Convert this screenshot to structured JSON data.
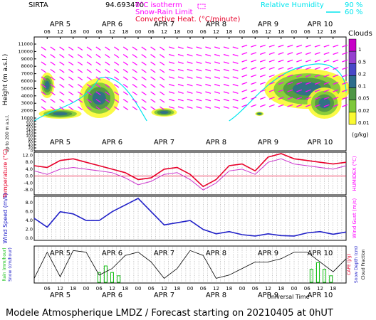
{
  "header": {
    "station": "SIRTA",
    "number": "94.693470",
    "isotherm_label": "0°C isotherm",
    "snowrain_label": "Snow-Rain Limit",
    "conv_label": "Convective Heat. (°C/minute)",
    "rh_label": "Relative Humidity",
    "rh_90": "90 %",
    "rh_60": "60 %"
  },
  "footer": "Modele Atmospherique LMDZ / Forecast starting on 20210405 at 0hUT",
  "colors": {
    "magenta": "#ff00ff",
    "cyan": "#00e5ee",
    "red": "#e8002a",
    "blue": "#2020c8",
    "green": "#10c010"
  },
  "chart_data": [
    {
      "type": "heatmap",
      "title": "Clouds",
      "ylabel": "Height (m a.s.l.)",
      "ylabel2": "Up to 200 m a.s.l.",
      "colorbar_unit": "(g/kg)",
      "colorbar_ticks": [
        "1",
        "0.5",
        "0.2",
        "0.1",
        "0.05",
        "0.02",
        "0.01"
      ],
      "colorbar_colors": [
        "#c800c8",
        "#9640d0",
        "#4848c8",
        "#2d6e8c",
        "#4e9646",
        "#7ec83a",
        "#fafa32"
      ],
      "yticks": [
        "11000",
        "10000",
        "9000",
        "8000",
        "7000",
        "6000",
        "5000",
        "4000",
        "3000",
        "2000",
        "1000",
        "200",
        "180",
        "160",
        "140",
        "120",
        "100",
        "80",
        "60",
        "40",
        "20",
        "0"
      ],
      "day_labels": [
        "APR 5",
        "APR 6",
        "APR 7",
        "APR 8",
        "APR 9",
        "APR 10"
      ],
      "hour_labels": [
        "06",
        "12",
        "18",
        "00",
        "06",
        "12",
        "18",
        "00",
        "06",
        "12",
        "18",
        "00",
        "06",
        "12",
        "18",
        "00",
        "06",
        "12",
        "18",
        "00",
        "06",
        "12",
        "18"
      ]
    },
    {
      "type": "line",
      "ylabel": "Temperature (°C)",
      "ylabel_right": "HUMIDEX (°C)",
      "yticks": [
        "12.0",
        "8.0",
        "4.0",
        "0.0",
        "-4.0",
        "-8.0"
      ],
      "ylim": [
        -10,
        13
      ],
      "x_hours": [
        0,
        6,
        12,
        18,
        24,
        30,
        36,
        42,
        48,
        54,
        60,
        66,
        72,
        78,
        84,
        90,
        96,
        102,
        108,
        114,
        120,
        126,
        132,
        138,
        144
      ],
      "series": [
        {
          "values": [
            6,
            5,
            9,
            10,
            8,
            6,
            4,
            2,
            -2,
            -1,
            4,
            5,
            1,
            -6,
            -2,
            6,
            7,
            3,
            11,
            13,
            10,
            9,
            8,
            7,
            8
          ]
        },
        {
          "values": [
            3,
            1,
            4,
            5,
            4,
            3,
            2,
            -1,
            -5,
            -3,
            1,
            2,
            -2,
            -8,
            -4,
            3,
            4,
            1,
            8,
            10,
            7,
            6,
            5,
            4,
            6
          ]
        }
      ]
    },
    {
      "type": "line",
      "ylabel": "Wind Speed (m/s)",
      "ylabel_right": "Wind Gust (m/s)",
      "yticks": [
        "8.0",
        "6.0",
        "4.0",
        "2.0",
        "0.0"
      ],
      "ylim": [
        0,
        9
      ],
      "x_hours": [
        0,
        6,
        12,
        18,
        24,
        30,
        36,
        42,
        48,
        54,
        60,
        66,
        72,
        78,
        84,
        90,
        96,
        102,
        108,
        114,
        120,
        126,
        132,
        138,
        144
      ],
      "series": [
        {
          "values": [
            4.5,
            2.5,
            6,
            5.5,
            4,
            4,
            6,
            7.5,
            9,
            6,
            3,
            3.5,
            4,
            2,
            1,
            1.5,
            0.8,
            0.5,
            1,
            0.6,
            0.5,
            1.2,
            1.5,
            0.9,
            1.4
          ]
        }
      ]
    },
    {
      "type": "line",
      "ylabel": "Rain (mm/hour)",
      "ylabel2": "Snow (cm/hour)",
      "ylabel_right": "CAPE (J/g)",
      "ylabel_right2": "Snow Depth (cm)",
      "ylabel_right3": "Cloud Fraction",
      "x_hours": [
        0,
        6,
        12,
        18,
        24,
        30,
        36,
        42,
        48,
        54,
        60,
        66,
        72,
        78,
        84,
        90,
        96,
        102,
        108,
        114,
        120,
        126,
        132,
        138,
        144
      ],
      "series": [
        {
          "values": [
            0.1,
            0.9,
            0.15,
            0.95,
            0.9,
            0.2,
            0.4,
            0.8,
            0.9,
            0.6,
            0.1,
            0.4,
            0.95,
            0.8,
            0.1,
            0.2,
            0.4,
            0.6,
            0.6,
            0.7,
            0.9,
            0.9,
            0.6,
            0.3,
            0.7
          ]
        }
      ],
      "rain_bars": [
        {
          "x": 30,
          "value": 0.3
        },
        {
          "x": 33,
          "value": 0.5
        },
        {
          "x": 36,
          "value": 0.3
        },
        {
          "x": 39,
          "value": 0.2
        },
        {
          "x": 128,
          "value": 0.4
        },
        {
          "x": 131,
          "value": 0.6
        },
        {
          "x": 134,
          "value": 0.4
        },
        {
          "x": 137,
          "value": 0.2
        }
      ]
    }
  ],
  "xlabel": "Universal Time"
}
